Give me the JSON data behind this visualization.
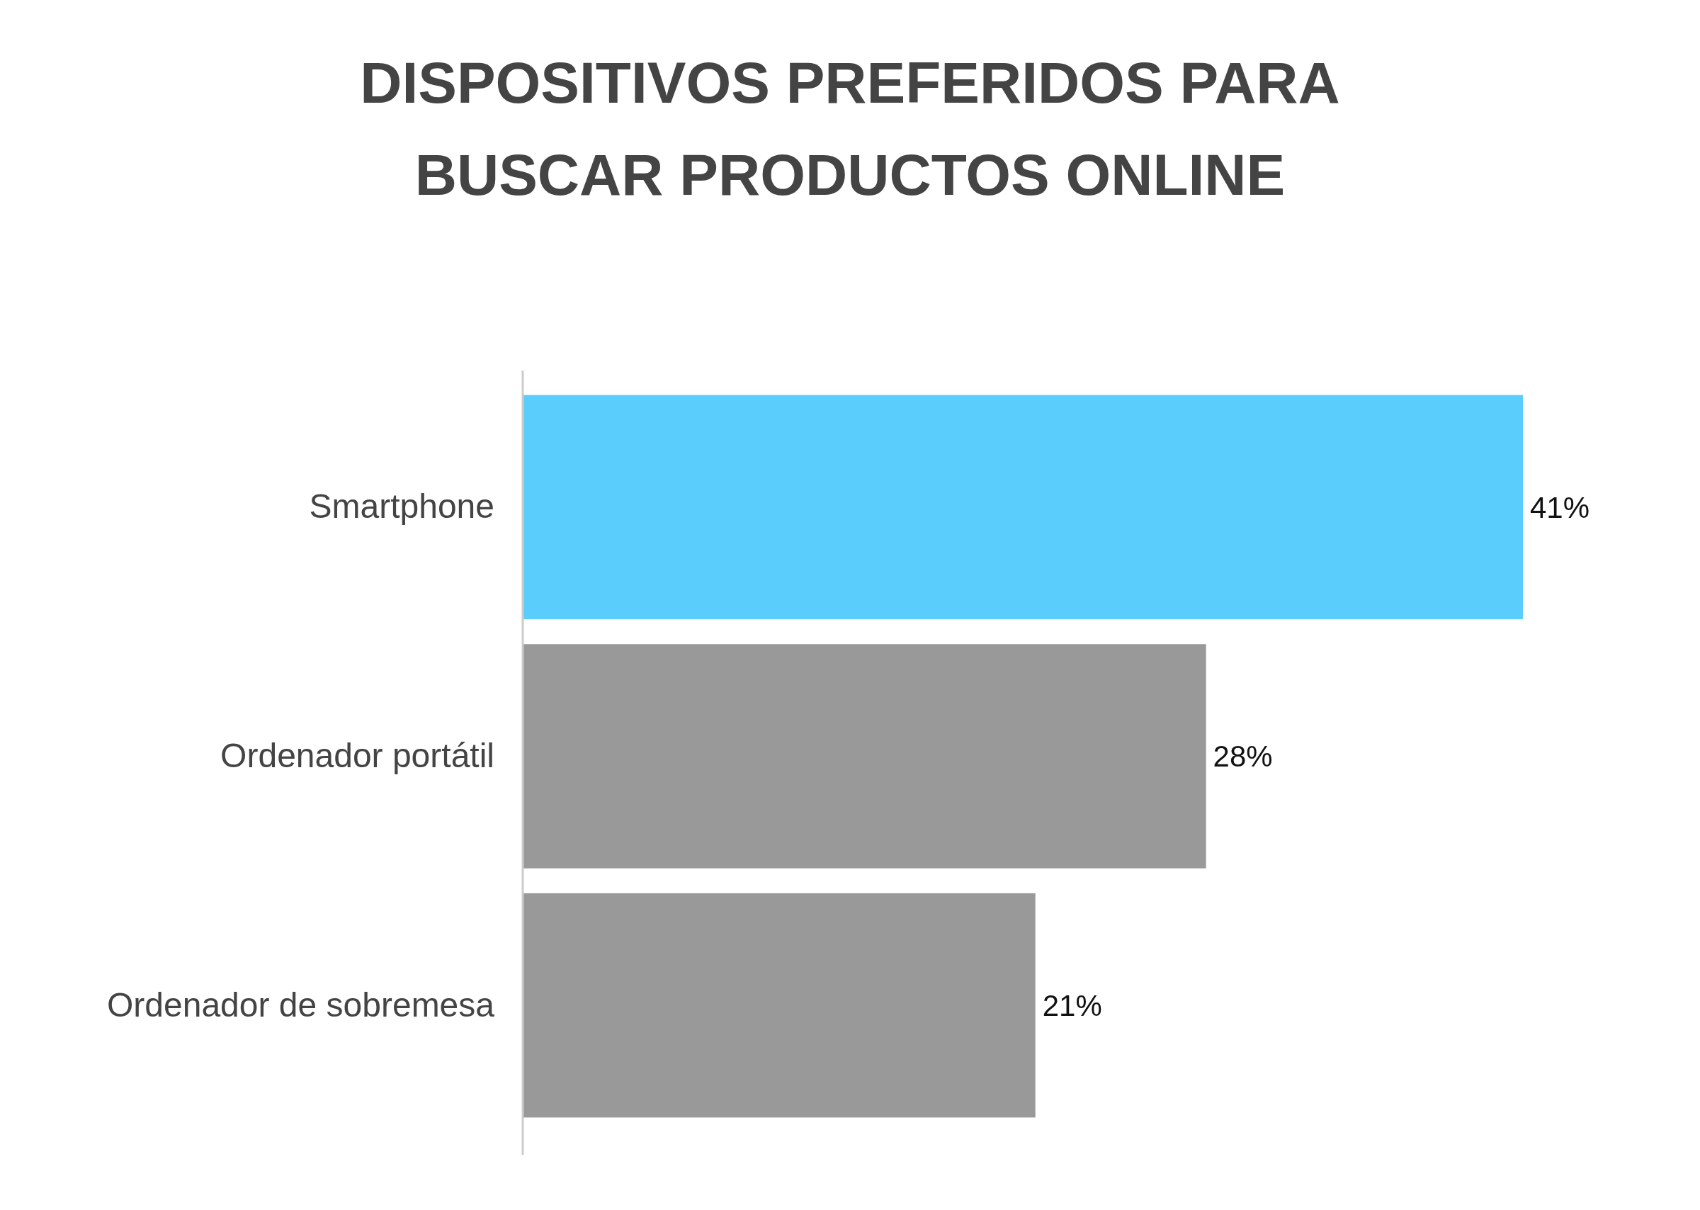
{
  "chart_data": {
    "type": "bar",
    "orientation": "horizontal",
    "title": "DISPOSITIVOS PREFERIDOS PARA\nBUSCAR PRODUCTOS ONLINE",
    "categories": [
      "Smartphone",
      "Ordenador portátil",
      "Ordenador de sobremesa"
    ],
    "values": [
      41,
      28,
      21
    ],
    "colors": [
      "#5bcdfd",
      "#999999",
      "#999999"
    ],
    "data_labels": true,
    "value_labels": [
      "41%",
      "28%",
      "21%"
    ]
  }
}
